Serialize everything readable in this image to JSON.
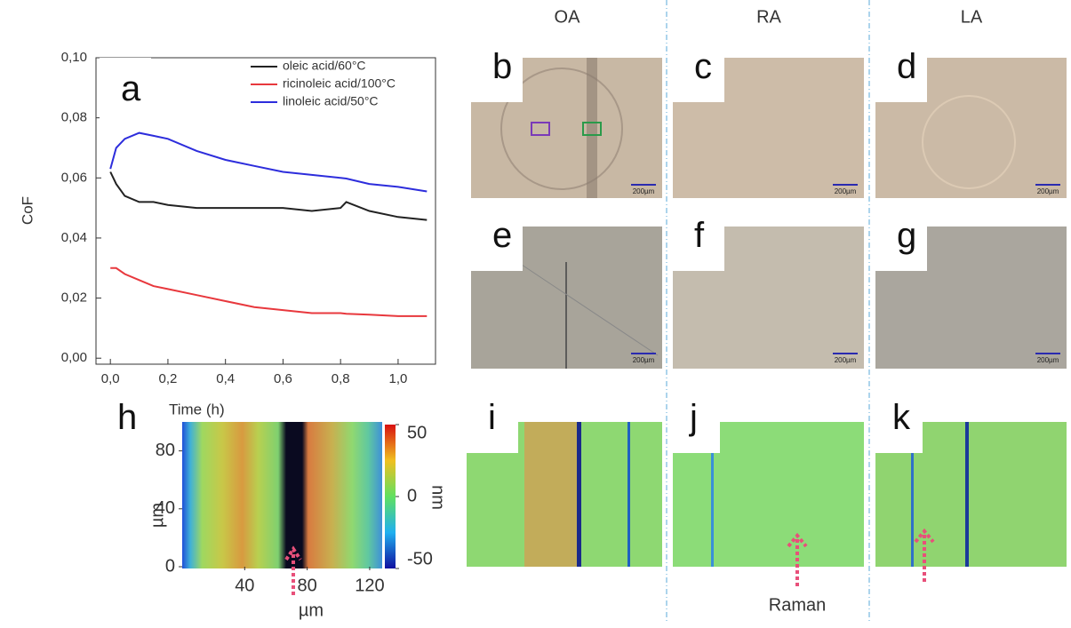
{
  "chart_data": [
    {
      "type": "line",
      "panel_label": "a",
      "xlabel": "Time (h)",
      "ylabel": "CoF",
      "x": [
        0,
        0.02,
        0.05,
        0.1,
        0.15,
        0.2,
        0.3,
        0.4,
        0.5,
        0.6,
        0.7,
        0.8,
        0.82,
        0.9,
        1.0,
        1.1
      ],
      "series": [
        {
          "name": "oleic acid/60°C",
          "color": "#222222",
          "values": [
            0.062,
            0.058,
            0.054,
            0.052,
            0.052,
            0.051,
            0.05,
            0.05,
            0.05,
            0.05,
            0.049,
            0.05,
            0.052,
            0.049,
            0.047,
            0.046
          ]
        },
        {
          "name": "ricinoleic acid/100°C",
          "color": "#e8383d",
          "values": [
            0.03,
            0.03,
            0.028,
            0.026,
            0.024,
            0.023,
            0.021,
            0.019,
            0.017,
            0.016,
            0.015,
            0.015,
            0.0148,
            0.0145,
            0.014,
            0.014
          ]
        },
        {
          "name": "linoleic acid/50°C",
          "color": "#2d2ddc",
          "values": [
            0.063,
            0.07,
            0.073,
            0.075,
            0.074,
            0.073,
            0.069,
            0.066,
            0.064,
            0.062,
            0.061,
            0.06,
            0.0598,
            0.058,
            0.057,
            0.0555
          ]
        }
      ],
      "xlim": [
        -0.05,
        1.13
      ],
      "ylim": [
        -0.002,
        0.1
      ],
      "xticks": [
        {
          "value": 0,
          "label": "0,0"
        },
        {
          "value": 0.2,
          "label": "0,2"
        },
        {
          "value": 0.4,
          "label": "0,4"
        },
        {
          "value": 0.6,
          "label": "0,6"
        },
        {
          "value": 0.8,
          "label": "0,8"
        },
        {
          "value": 1.0,
          "label": "1,0"
        }
      ],
      "yticks": [
        {
          "value": 0,
          "label": "0,00"
        },
        {
          "value": 0.02,
          "label": "0,02"
        },
        {
          "value": 0.04,
          "label": "0,04"
        },
        {
          "value": 0.06,
          "label": "0,06"
        },
        {
          "value": 0.08,
          "label": "0,08"
        },
        {
          "value": 0.1,
          "label": "0,10"
        }
      ],
      "legend": "upper right"
    },
    {
      "type": "heatmap",
      "panel_label": "h",
      "xlabel": "µm",
      "ylabel": "µm",
      "xlim": [
        0,
        128
      ],
      "ylim": [
        0,
        100
      ],
      "xticks": [
        40,
        80,
        120
      ],
      "yticks": [
        0,
        40,
        80
      ],
      "colorbar": {
        "label": "nm",
        "lim": [
          -50,
          50
        ],
        "ticks": [
          -50,
          0,
          50
        ]
      }
    }
  ],
  "micrographs": {
    "columns": [
      "OA",
      "RA",
      "LA"
    ],
    "labels": [
      "b",
      "c",
      "d",
      "e",
      "f",
      "g"
    ],
    "scale_bar": "200µm"
  },
  "profiles": {
    "labels": [
      "i",
      "j",
      "k"
    ],
    "annotation": "Raman"
  }
}
